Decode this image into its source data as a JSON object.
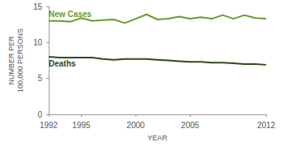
{
  "chart_data": {
    "type": "line",
    "x_label": "YEAR",
    "y_label": "NUMBER PER\n100,000 PERSONS",
    "x": [
      1992,
      1993,
      1994,
      1995,
      1996,
      1997,
      1998,
      1999,
      2000,
      2001,
      2002,
      2003,
      2004,
      2005,
      2006,
      2007,
      2008,
      2009,
      2010,
      2011,
      2012
    ],
    "series": [
      {
        "name": "New Cases",
        "color": "#6a9a2e",
        "values": [
          13.0,
          13.0,
          12.9,
          13.4,
          13.0,
          13.1,
          13.2,
          12.7,
          13.3,
          13.9,
          13.2,
          13.3,
          13.6,
          13.3,
          13.5,
          13.3,
          13.8,
          13.3,
          13.8,
          13.4,
          13.3
        ]
      },
      {
        "name": "Deaths",
        "color": "#2f4a1f",
        "values": [
          8.0,
          7.9,
          7.9,
          7.9,
          7.9,
          7.7,
          7.6,
          7.7,
          7.7,
          7.7,
          7.6,
          7.5,
          7.4,
          7.3,
          7.3,
          7.2,
          7.2,
          7.1,
          7.0,
          7.0,
          6.9
        ]
      }
    ],
    "xlim": [
      1992,
      2012
    ],
    "xticks": [
      1992,
      1995,
      2000,
      2005,
      2012
    ],
    "ylim": [
      0,
      15
    ],
    "yticks": [
      0,
      5,
      10,
      15
    ],
    "grid": false
  }
}
